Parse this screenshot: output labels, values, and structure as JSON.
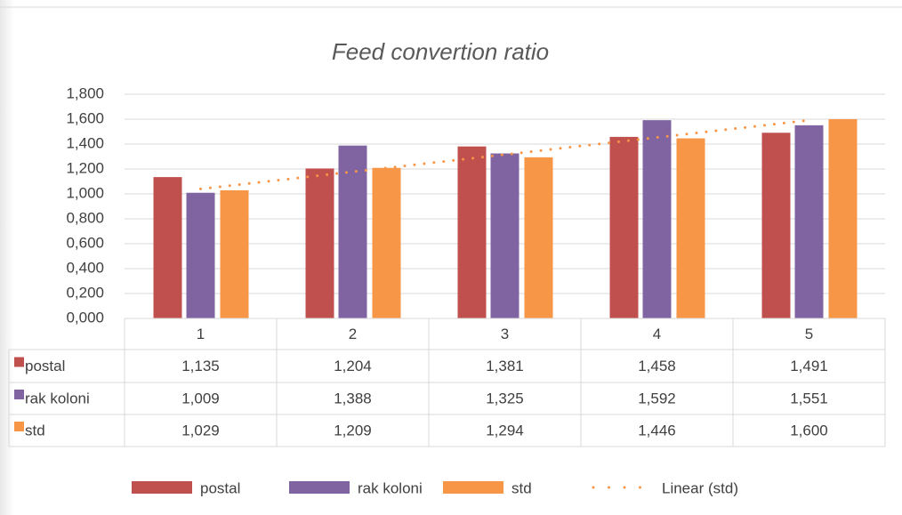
{
  "chart_data": {
    "type": "bar",
    "title": "Feed convertion ratio",
    "categories": [
      "1",
      "2",
      "3",
      "4",
      "5"
    ],
    "series": [
      {
        "name": "postal",
        "color": "#c0504d",
        "values": [
          1.135,
          1.204,
          1.381,
          1.458,
          1.491
        ],
        "value_labels": [
          "1,135",
          "1,204",
          "1,381",
          "1,458",
          "1,491"
        ]
      },
      {
        "name": "rak koloni",
        "color": "#8064a2",
        "values": [
          1.009,
          1.388,
          1.325,
          1.592,
          1.551
        ],
        "value_labels": [
          "1,009",
          "1,388",
          "1,325",
          "1,592",
          "1,551"
        ]
      },
      {
        "name": "std",
        "color": "#f79646",
        "values": [
          1.029,
          1.209,
          1.294,
          1.446,
          1.6
        ],
        "value_labels": [
          "1,029",
          "1,209",
          "1,294",
          "1,446",
          "1,600"
        ]
      }
    ],
    "trendline": {
      "name": "Linear (std)",
      "type": "linear",
      "series": 2,
      "color": "#f79646"
    },
    "ylim": [
      0,
      1.8
    ],
    "yticks": [
      {
        "value": 0,
        "label": "0,000"
      },
      {
        "value": 0.2,
        "label": "0,200"
      },
      {
        "value": 0.4,
        "label": "0,400"
      },
      {
        "value": 0.6,
        "label": "0,600"
      },
      {
        "value": 0.8,
        "label": "0,800"
      },
      {
        "value": 1.0,
        "label": "1,000"
      },
      {
        "value": 1.2,
        "label": "1,200"
      },
      {
        "value": 1.4,
        "label": "1,400"
      },
      {
        "value": 1.6,
        "label": "1,600"
      },
      {
        "value": 1.8,
        "label": "1,800"
      }
    ],
    "grid": true,
    "data_table": true,
    "legend": "bottom"
  }
}
